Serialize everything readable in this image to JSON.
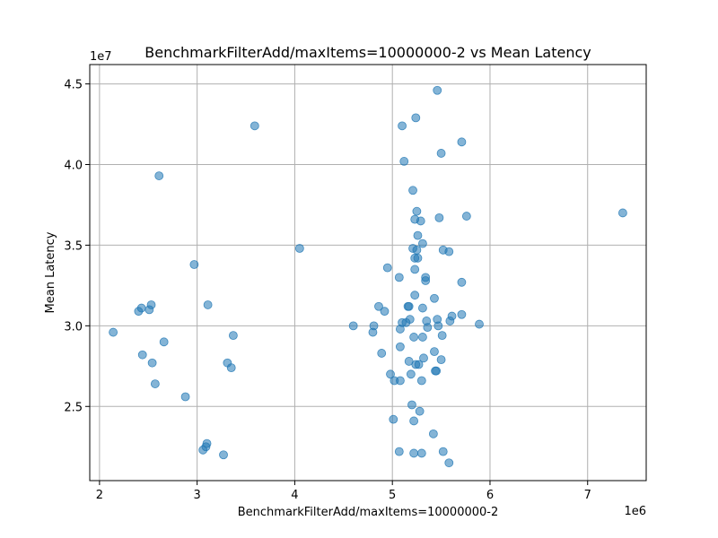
{
  "chart_data": {
    "type": "scatter",
    "title": "BenchmarkFilterAdd/maxItems=10000000-2 vs Mean Latency",
    "xlabel": "BenchmarkFilterAdd/maxItems=10000000-2",
    "ylabel": "Mean Latency",
    "x_offset_label": "1e6",
    "y_offset_label": "1e7",
    "xlim": [
      1.9,
      7.6
    ],
    "ylim": [
      2.04,
      4.62
    ],
    "x_ticks": [
      2,
      3,
      4,
      5,
      6,
      7
    ],
    "x_tick_labels": [
      "2",
      "3",
      "4",
      "5",
      "6",
      "7"
    ],
    "y_ticks": [
      2.5,
      3.0,
      3.5,
      4.0,
      4.5
    ],
    "y_tick_labels": [
      "2.5",
      "3.0",
      "3.5",
      "4.0",
      "4.5"
    ],
    "grid": true,
    "marker_color": "#1f77b4",
    "marker_alpha": 0.55,
    "points": [
      [
        2.14,
        2.96
      ],
      [
        2.4,
        3.09
      ],
      [
        2.43,
        3.11
      ],
      [
        2.44,
        2.82
      ],
      [
        2.51,
        3.1
      ],
      [
        2.53,
        3.13
      ],
      [
        2.54,
        2.77
      ],
      [
        2.57,
        2.64
      ],
      [
        2.61,
        3.93
      ],
      [
        2.66,
        2.9
      ],
      [
        2.88,
        2.56
      ],
      [
        2.97,
        3.38
      ],
      [
        3.06,
        2.23
      ],
      [
        3.09,
        2.25
      ],
      [
        3.1,
        2.27
      ],
      [
        3.11,
        3.13
      ],
      [
        3.27,
        2.2
      ],
      [
        3.31,
        2.77
      ],
      [
        3.35,
        2.74
      ],
      [
        3.37,
        2.94
      ],
      [
        3.59,
        4.24
      ],
      [
        4.05,
        3.48
      ],
      [
        4.6,
        3.0
      ],
      [
        4.8,
        2.96
      ],
      [
        4.81,
        3.0
      ],
      [
        4.86,
        3.12
      ],
      [
        4.89,
        2.83
      ],
      [
        4.92,
        3.09
      ],
      [
        4.95,
        3.36
      ],
      [
        4.98,
        2.7
      ],
      [
        5.01,
        2.42
      ],
      [
        5.02,
        2.66
      ],
      [
        5.07,
        2.22
      ],
      [
        5.07,
        3.3
      ],
      [
        5.08,
        2.87
      ],
      [
        5.08,
        2.66
      ],
      [
        5.08,
        2.98
      ],
      [
        5.1,
        3.02
      ],
      [
        5.1,
        4.24
      ],
      [
        5.12,
        4.02
      ],
      [
        5.14,
        3.02
      ],
      [
        5.16,
        3.12
      ],
      [
        5.17,
        3.12
      ],
      [
        5.17,
        2.78
      ],
      [
        5.18,
        3.04
      ],
      [
        5.19,
        2.7
      ],
      [
        5.2,
        2.51
      ],
      [
        5.21,
        3.84
      ],
      [
        5.21,
        3.48
      ],
      [
        5.22,
        2.93
      ],
      [
        5.22,
        2.21
      ],
      [
        5.22,
        2.41
      ],
      [
        5.23,
        3.66
      ],
      [
        5.23,
        3.42
      ],
      [
        5.23,
        3.35
      ],
      [
        5.23,
        3.19
      ],
      [
        5.24,
        4.29
      ],
      [
        5.24,
        2.76
      ],
      [
        5.25,
        3.71
      ],
      [
        5.25,
        3.47
      ],
      [
        5.26,
        3.56
      ],
      [
        5.26,
        3.42
      ],
      [
        5.27,
        2.76
      ],
      [
        5.28,
        2.47
      ],
      [
        5.29,
        3.65
      ],
      [
        5.3,
        2.21
      ],
      [
        5.3,
        2.66
      ],
      [
        5.31,
        3.51
      ],
      [
        5.31,
        3.11
      ],
      [
        5.31,
        2.93
      ],
      [
        5.32,
        2.8
      ],
      [
        5.34,
        3.28
      ],
      [
        5.34,
        3.3
      ],
      [
        5.35,
        3.03
      ],
      [
        5.36,
        2.99
      ],
      [
        5.42,
        2.33
      ],
      [
        5.43,
        2.84
      ],
      [
        5.43,
        3.17
      ],
      [
        5.44,
        2.72
      ],
      [
        5.45,
        2.72
      ],
      [
        5.46,
        3.04
      ],
      [
        5.46,
        4.46
      ],
      [
        5.47,
        3.0
      ],
      [
        5.48,
        3.67
      ],
      [
        5.5,
        2.79
      ],
      [
        5.5,
        4.07
      ],
      [
        5.51,
        2.94
      ],
      [
        5.52,
        3.47
      ],
      [
        5.52,
        2.22
      ],
      [
        5.58,
        3.46
      ],
      [
        5.58,
        2.15
      ],
      [
        5.59,
        3.03
      ],
      [
        5.61,
        3.06
      ],
      [
        5.71,
        3.07
      ],
      [
        5.71,
        3.27
      ],
      [
        5.71,
        4.14
      ],
      [
        5.76,
        3.68
      ],
      [
        5.89,
        3.01
      ],
      [
        7.36,
        3.7
      ]
    ]
  }
}
